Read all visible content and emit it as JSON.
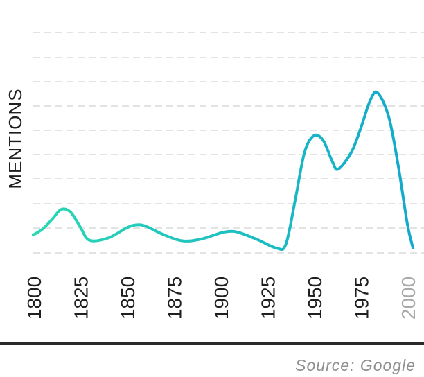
{
  "chart_data": {
    "type": "line",
    "ylabel": "MENTIONS",
    "x": [
      1800,
      1805,
      1810,
      1815,
      1820,
      1825,
      1830,
      1840,
      1850,
      1855,
      1860,
      1870,
      1880,
      1890,
      1900,
      1905,
      1910,
      1920,
      1930,
      1935,
      1940,
      1945,
      1950,
      1955,
      1960,
      1963,
      1970,
      1975,
      1980,
      1984,
      1990,
      1995,
      2000,
      2003
    ],
    "values": [
      0.55,
      0.8,
      1.2,
      1.62,
      1.5,
      0.9,
      0.33,
      0.42,
      0.85,
      0.97,
      0.92,
      0.55,
      0.3,
      0.38,
      0.63,
      0.7,
      0.65,
      0.35,
      0.0,
      0.15,
      2.0,
      4.0,
      4.7,
      4.5,
      3.6,
      3.3,
      4.0,
      5.0,
      6.15,
      6.5,
      5.5,
      3.5,
      1.0,
      0.0
    ],
    "xticks": [
      "1800",
      "1825",
      "1850",
      "1875",
      "1900",
      "1925",
      "1950",
      "1975",
      "2000"
    ],
    "grid": true,
    "colors": {
      "start": "#2ad8b4",
      "end": "#12a9cc",
      "tick": "#1f1f1f",
      "tick_faded": "#a8a8a8",
      "grid": "#e3e3e3"
    }
  },
  "source": "Source: Google"
}
